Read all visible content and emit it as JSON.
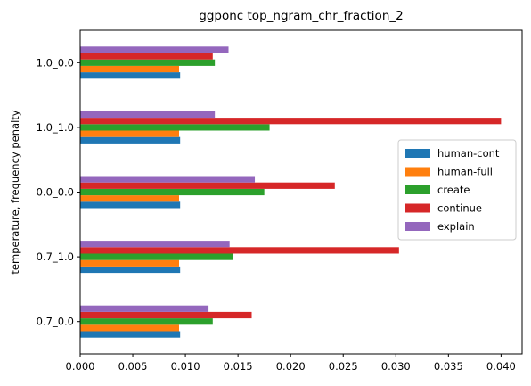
{
  "chart_data": {
    "type": "bar",
    "orientation": "horizontal",
    "title": "ggponc top_ngram_chr_fraction_2",
    "xlabel": "",
    "ylabel": "temperature, frequency penalty",
    "categories": [
      "0.7_0.0",
      "0.7_1.0",
      "0.0_0.0",
      "1.0_1.0",
      "1.0_0.0"
    ],
    "xlim": [
      0,
      0.042
    ],
    "xticks": [
      "0.000",
      "0.005",
      "0.010",
      "0.015",
      "0.020",
      "0.025",
      "0.030",
      "0.035",
      "0.040"
    ],
    "grid": false,
    "legend_position": "center-right",
    "series": [
      {
        "name": "human-cont",
        "color": "#1f77b4",
        "values": [
          0.0095,
          0.0095,
          0.0095,
          0.0095,
          0.0095
        ]
      },
      {
        "name": "human-full",
        "color": "#ff7f0e",
        "values": [
          0.0094,
          0.0094,
          0.0094,
          0.0094,
          0.0094
        ]
      },
      {
        "name": "create",
        "color": "#2ca02c",
        "values": [
          0.0126,
          0.0145,
          0.0175,
          0.018,
          0.0128
        ]
      },
      {
        "name": "continue",
        "color": "#d62728",
        "values": [
          0.0163,
          0.0303,
          0.0242,
          0.04,
          0.0126
        ]
      },
      {
        "name": "explain",
        "color": "#9467bd",
        "values": [
          0.0122,
          0.0142,
          0.0166,
          0.0128,
          0.0141
        ]
      }
    ]
  }
}
